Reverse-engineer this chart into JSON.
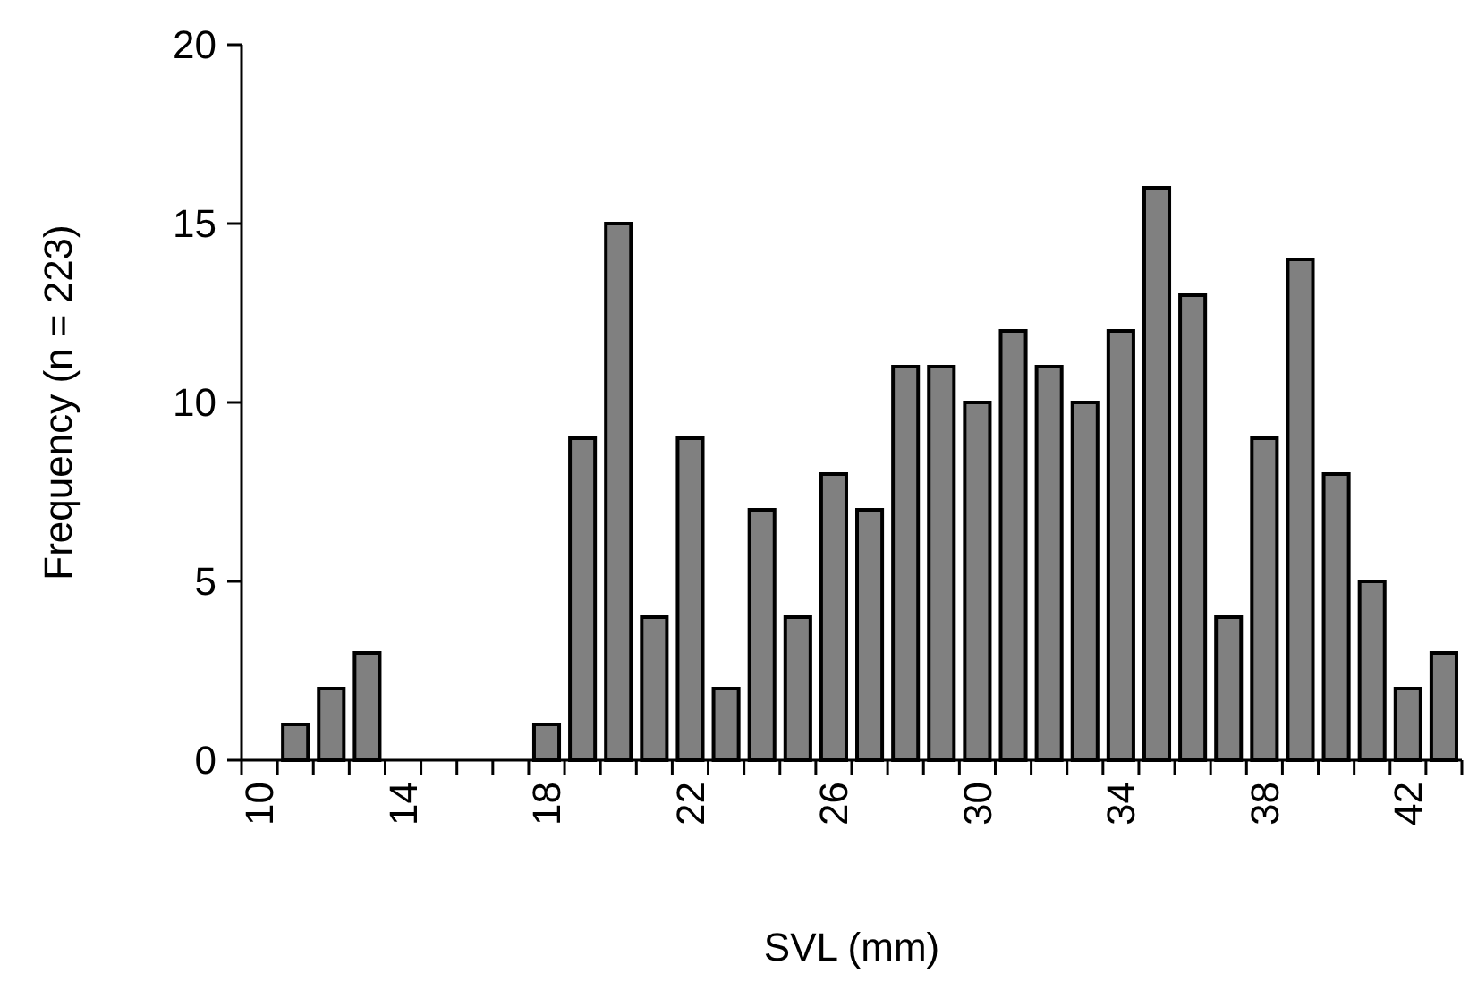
{
  "chart_data": {
    "type": "bar",
    "xlabel": "SVL (mm)",
    "ylabel": "Frequency (n = 223)",
    "categories": [
      "10",
      null,
      null,
      null,
      "14",
      null,
      null,
      null,
      "18",
      null,
      null,
      null,
      "22",
      null,
      null,
      null,
      "26",
      null,
      null,
      null,
      "30",
      null,
      null,
      null,
      "34",
      null,
      null,
      null,
      "38",
      null,
      null,
      null,
      "42",
      null
    ],
    "values": [
      0,
      1,
      2,
      3,
      0,
      0,
      0,
      0,
      1,
      9,
      15,
      4,
      9,
      2,
      7,
      4,
      8,
      7,
      11,
      11,
      10,
      12,
      11,
      10,
      12,
      16,
      13,
      4,
      9,
      14,
      8,
      5,
      2,
      3
    ],
    "color": "#808080",
    "ylim": [
      0,
      20
    ],
    "yticks": [
      0,
      5,
      10,
      15,
      20
    ],
    "grid": false
  }
}
